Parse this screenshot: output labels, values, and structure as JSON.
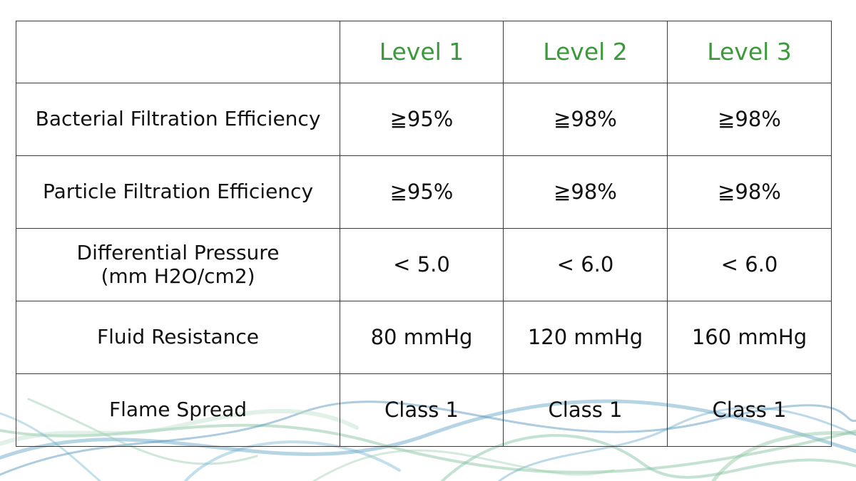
{
  "table": {
    "corner": "",
    "levels": [
      "Level 1",
      "Level 2",
      "Level 3"
    ],
    "rows": [
      {
        "label": [
          "Bacterial Filtration Efficiency"
        ],
        "values": [
          "≧95%",
          "≧98%",
          "≧98%"
        ]
      },
      {
        "label": [
          "Particle Filtration Efficiency"
        ],
        "values": [
          "≧95%",
          "≧98%",
          "≧98%"
        ]
      },
      {
        "label": [
          "Differential Pressure",
          "(mm H2O/cm2)"
        ],
        "values": [
          "< 5.0",
          "< 6.0",
          "< 6.0"
        ]
      },
      {
        "label": [
          "Fluid Resistance"
        ],
        "values": [
          "80 mmHg",
          "120 mmHg",
          "160 mmHg"
        ]
      },
      {
        "label": [
          "Flame Spread"
        ],
        "values": [
          "Class 1",
          "Class 1",
          "Class 1"
        ]
      }
    ]
  },
  "colors": {
    "level_heading": "#3a9a3a",
    "text": "#111111",
    "grid": "#3a3a3a",
    "fiber_blue": "#5b9fc4",
    "fiber_green": "#8cc6a2"
  }
}
